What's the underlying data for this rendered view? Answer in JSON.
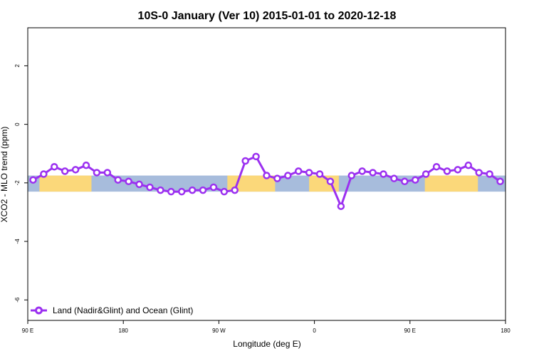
{
  "chart_data": {
    "type": "line",
    "title": "10S-0 January (Ver 10)   2015-01-01 to 2020-12-18",
    "xlabel": "Longitude (deg E)",
    "ylabel": "XCO2 - MLO trend (ppm)",
    "xlim": [
      90,
      540
    ],
    "ylim": [
      -6.7,
      3.3
    ],
    "x_ticks": [
      {
        "value": 90,
        "label": "90 E"
      },
      {
        "value": 180,
        "label": "180"
      },
      {
        "value": 270,
        "label": "90 W"
      },
      {
        "value": 360,
        "label": "0"
      },
      {
        "value": 450,
        "label": "90 E"
      },
      {
        "value": 540,
        "label": "180"
      }
    ],
    "y_ticks": [
      {
        "value": 2,
        "label": "2"
      },
      {
        "value": 0,
        "label": "0"
      },
      {
        "value": -2,
        "label": "-2"
      },
      {
        "value": -4,
        "label": "-4"
      },
      {
        "value": -6,
        "label": "-6"
      }
    ],
    "background_map": {
      "y_range": [
        -2.3,
        -1.75
      ],
      "ocean_color": "#a7bcdc",
      "land_color": "#fbd87a",
      "land_segments": [
        [
          101,
          150
        ],
        [
          278,
          323
        ],
        [
          355,
          383
        ],
        [
          464,
          514
        ]
      ]
    },
    "series": [
      {
        "name": "Land (Nadir&Glint) and Ocean (Glint)",
        "color": "#9b30f0",
        "x": [
          95,
          105,
          115,
          125,
          135,
          145,
          155,
          165,
          175,
          185,
          195,
          205,
          215,
          225,
          235,
          245,
          255,
          265,
          275,
          285,
          295,
          305,
          315,
          325,
          335,
          345,
          355,
          365,
          375,
          385,
          395,
          405,
          415,
          425,
          435,
          445,
          455,
          465,
          475,
          485,
          495,
          505,
          515,
          525,
          535
        ],
        "y": [
          -1.9,
          -1.7,
          -1.45,
          -1.6,
          -1.55,
          -1.4,
          -1.65,
          -1.65,
          -1.9,
          -1.95,
          -2.05,
          -2.15,
          -2.25,
          -2.3,
          -2.3,
          -2.25,
          -2.25,
          -2.15,
          -2.3,
          -2.25,
          -1.25,
          -1.1,
          -1.75,
          -1.85,
          -1.75,
          -1.6,
          -1.65,
          -1.7,
          -1.95,
          -2.8,
          -1.75,
          -1.6,
          -1.65,
          -1.7,
          -1.85,
          -1.95,
          -1.9,
          -1.7,
          -1.45,
          -1.6,
          -1.55,
          -1.4,
          -1.65,
          -1.7,
          -1.95
        ]
      }
    ],
    "legend": {
      "position": "bottom-left",
      "label": "Land (Nadir&Glint) and Ocean (Glint)"
    },
    "grid": false
  }
}
